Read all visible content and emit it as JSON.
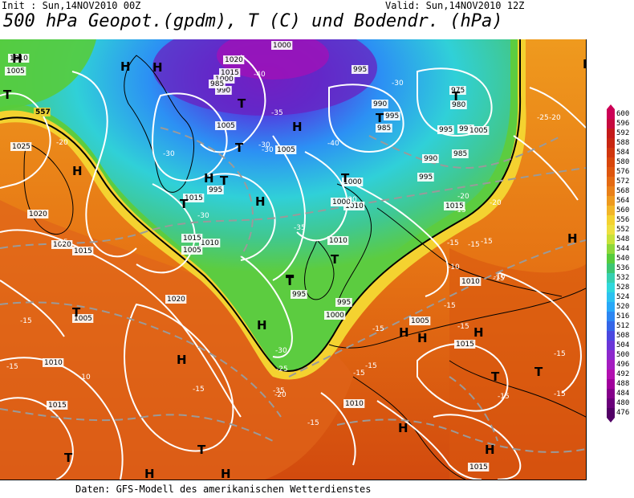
{
  "header": {
    "init": "Init : Sun,14NOV2010 00Z",
    "valid": "Valid: Sun,14NOV2010 12Z",
    "title": "500 hPa Geopot.(gpdm), T (C) und Bodendr. (hPa)"
  },
  "footer": "Daten: GFS-Modell des amerikanischen Wetterdienstes",
  "colorbar": {
    "levels": [
      {
        "value": "600",
        "color": "#cc0055"
      },
      {
        "value": "596",
        "color": "#c60a3e"
      },
      {
        "value": "592",
        "color": "#c41a1a"
      },
      {
        "value": "588",
        "color": "#c82612"
      },
      {
        "value": "584",
        "color": "#d0360e"
      },
      {
        "value": "580",
        "color": "#d8460c"
      },
      {
        "value": "576",
        "color": "#de560e"
      },
      {
        "value": "572",
        "color": "#e46a12"
      },
      {
        "value": "568",
        "color": "#e98018"
      },
      {
        "value": "564",
        "color": "#ee9a1e"
      },
      {
        "value": "560",
        "color": "#f2b628"
      },
      {
        "value": "556",
        "color": "#f4d230"
      },
      {
        "value": "552",
        "color": "#eee040"
      },
      {
        "value": "548",
        "color": "#c8e23a"
      },
      {
        "value": "544",
        "color": "#8ed83a"
      },
      {
        "value": "540",
        "color": "#56cc3c"
      },
      {
        "value": "536",
        "color": "#3cc672"
      },
      {
        "value": "532",
        "color": "#36d0b0"
      },
      {
        "value": "528",
        "color": "#30d8dc"
      },
      {
        "value": "524",
        "color": "#2cc2f0"
      },
      {
        "value": "520",
        "color": "#28a8f8"
      },
      {
        "value": "516",
        "color": "#2c86f2"
      },
      {
        "value": "512",
        "color": "#3466e8"
      },
      {
        "value": "508",
        "color": "#4a48e0"
      },
      {
        "value": "504",
        "color": "#6a36d8"
      },
      {
        "value": "500",
        "color": "#8c28cc"
      },
      {
        "value": "496",
        "color": "#a41cc0"
      },
      {
        "value": "492",
        "color": "#b210b0"
      },
      {
        "value": "488",
        "color": "#a0009c"
      },
      {
        "value": "484",
        "color": "#84008a"
      },
      {
        "value": "480",
        "color": "#6a007a"
      },
      {
        "value": "476",
        "color": "#520066"
      }
    ]
  },
  "map": {
    "pressure_labels": [
      "1000",
      "1010",
      "1005",
      "1020",
      "1025",
      "1015",
      "1000",
      "990",
      "985",
      "995",
      "1005",
      "1005",
      "990",
      "995",
      "990",
      "1000",
      "1005",
      "1010",
      "995",
      "985",
      "995",
      "980",
      "975",
      "990",
      "985",
      "995",
      "1000",
      "1015",
      "1010",
      "1015",
      "1020",
      "1020",
      "1005",
      "1015",
      "1010",
      "1000",
      "995",
      "995",
      "1010",
      "1015",
      "1005",
      "1020",
      "1010",
      "1015",
      "1005",
      "1015",
      "1010",
      "1015"
    ],
    "temperature_labels": [
      "-40",
      "-35",
      "-30",
      "-35",
      "-40",
      "-30",
      "-35",
      "-30",
      "-25",
      "-30",
      "-20",
      "-30",
      "-30",
      "-20",
      "-15",
      "-15",
      "-15",
      "-20",
      "-25",
      "-20",
      "-15",
      "-10",
      "-15",
      "-15",
      "-10",
      "-15",
      "-15",
      "-15",
      "-15",
      "-15",
      "-15",
      "-15",
      "-15",
      "-15",
      "-15",
      "-15",
      "-30",
      "-20",
      "-10",
      "-15"
    ],
    "highs": [
      "H",
      "H",
      "H",
      "H",
      "H",
      "H",
      "H",
      "H",
      "H",
      "H",
      "H",
      "H",
      "H",
      "H",
      "H",
      "H",
      "H",
      "H"
    ],
    "lows": [
      "T",
      "T",
      "T",
      "T",
      "T",
      "T",
      "T",
      "T",
      "T",
      "T",
      "T",
      "T",
      "T",
      "T",
      "T",
      "T"
    ],
    "special_labels": [
      "557"
    ]
  }
}
